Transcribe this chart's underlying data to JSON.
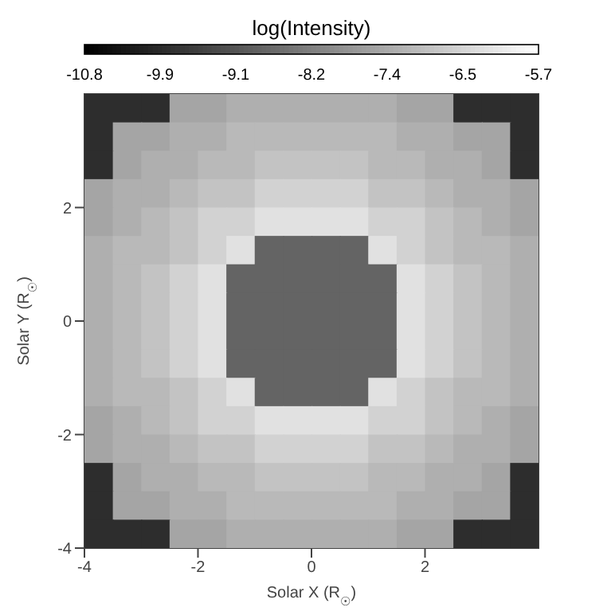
{
  "chart_data": {
    "type": "heatmap",
    "title": "log(Intensity)",
    "xlabel": "Solar X (R$_{☉}$)",
    "ylabel": "Solar Y (R$_{☉}$)",
    "xlim": [
      -4,
      4
    ],
    "ylim": [
      -4,
      4
    ],
    "xticks": [
      -4,
      -2,
      0,
      2
    ],
    "yticks": [
      -4,
      -2,
      0,
      2
    ],
    "clim": [
      -10.8,
      -5.7
    ],
    "cticks": [
      {
        "value": -10.8,
        "label": "-10.8"
      },
      {
        "value": -9.95,
        "label": "-9.9"
      },
      {
        "value": -9.1,
        "label": "-9.1"
      },
      {
        "value": -8.25,
        "label": "-8.2"
      },
      {
        "value": -7.4,
        "label": "-7.4"
      },
      {
        "value": -6.55,
        "label": "-6.5"
      },
      {
        "value": -5.7,
        "label": "-5.7"
      }
    ],
    "cells": [
      [
        -9.9,
        -9.9,
        -9.9,
        -7.5,
        -7.5,
        -7.3,
        -7.3,
        -7.3,
        -7.3,
        -7.3,
        -7.3,
        -7.5,
        -7.5,
        -9.9,
        -9.9,
        -9.9
      ],
      [
        -9.9,
        -7.5,
        -7.5,
        -7.3,
        -7.3,
        -7.1,
        -7.1,
        -7.1,
        -7.1,
        -7.1,
        -7.1,
        -7.3,
        -7.3,
        -7.5,
        -7.5,
        -9.9
      ],
      [
        -9.9,
        -7.5,
        -7.3,
        -7.3,
        -7.1,
        -7.1,
        -6.9,
        -6.9,
        -6.9,
        -6.9,
        -7.1,
        -7.1,
        -7.3,
        -7.3,
        -7.5,
        -9.9
      ],
      [
        -7.5,
        -7.3,
        -7.3,
        -7.1,
        -6.9,
        -6.9,
        -6.6,
        -6.6,
        -6.6,
        -6.6,
        -6.9,
        -6.9,
        -7.1,
        -7.3,
        -7.3,
        -7.5
      ],
      [
        -7.5,
        -7.3,
        -7.1,
        -6.9,
        -6.6,
        -6.6,
        -6.3,
        -6.3,
        -6.3,
        -6.3,
        -6.6,
        -6.6,
        -6.9,
        -7.1,
        -7.3,
        -7.5
      ],
      [
        -7.3,
        -7.1,
        -7.1,
        -6.9,
        -6.6,
        -6.3,
        -8.8,
        -8.8,
        -8.8,
        -8.8,
        -6.3,
        -6.6,
        -6.9,
        -7.1,
        -7.1,
        -7.3
      ],
      [
        -7.3,
        -7.1,
        -6.9,
        -6.6,
        -6.3,
        -8.8,
        -8.8,
        -8.8,
        -8.8,
        -8.8,
        -8.8,
        -6.3,
        -6.6,
        -6.9,
        -7.1,
        -7.3
      ],
      [
        -7.3,
        -7.1,
        -6.9,
        -6.6,
        -6.3,
        -8.8,
        -8.8,
        -8.8,
        -8.8,
        -8.8,
        -8.8,
        -6.3,
        -6.6,
        -6.9,
        -7.1,
        -7.3
      ],
      [
        -7.3,
        -7.1,
        -6.9,
        -6.6,
        -6.3,
        -8.8,
        -8.8,
        -8.8,
        -8.8,
        -8.8,
        -8.8,
        -6.3,
        -6.6,
        -6.9,
        -7.1,
        -7.3
      ],
      [
        -7.3,
        -7.1,
        -6.9,
        -6.6,
        -6.3,
        -8.8,
        -8.8,
        -8.8,
        -8.8,
        -8.8,
        -8.8,
        -6.3,
        -6.6,
        -6.9,
        -7.1,
        -7.3
      ],
      [
        -7.3,
        -7.1,
        -7.1,
        -6.9,
        -6.6,
        -6.3,
        -8.8,
        -8.8,
        -8.8,
        -8.8,
        -6.3,
        -6.6,
        -6.9,
        -7.1,
        -7.1,
        -7.3
      ],
      [
        -7.5,
        -7.3,
        -7.1,
        -6.9,
        -6.6,
        -6.6,
        -6.3,
        -6.3,
        -6.3,
        -6.3,
        -6.6,
        -6.6,
        -6.9,
        -7.1,
        -7.3,
        -7.5
      ],
      [
        -7.5,
        -7.3,
        -7.3,
        -7.1,
        -6.9,
        -6.9,
        -6.6,
        -6.6,
        -6.6,
        -6.6,
        -6.9,
        -6.9,
        -7.1,
        -7.3,
        -7.3,
        -7.5
      ],
      [
        -9.9,
        -7.5,
        -7.3,
        -7.3,
        -7.1,
        -7.1,
        -6.9,
        -6.9,
        -6.9,
        -6.9,
        -7.1,
        -7.1,
        -7.3,
        -7.3,
        -7.5,
        -9.9
      ],
      [
        -9.9,
        -7.5,
        -7.5,
        -7.3,
        -7.3,
        -7.1,
        -7.1,
        -7.1,
        -7.1,
        -7.1,
        -7.1,
        -7.3,
        -7.3,
        -7.5,
        -7.5,
        -9.9
      ],
      [
        -9.9,
        -9.9,
        -9.9,
        -7.5,
        -7.5,
        -7.3,
        -7.3,
        -7.3,
        -7.3,
        -7.3,
        -7.3,
        -7.5,
        -7.5,
        -9.9,
        -9.9,
        -9.9
      ]
    ]
  }
}
